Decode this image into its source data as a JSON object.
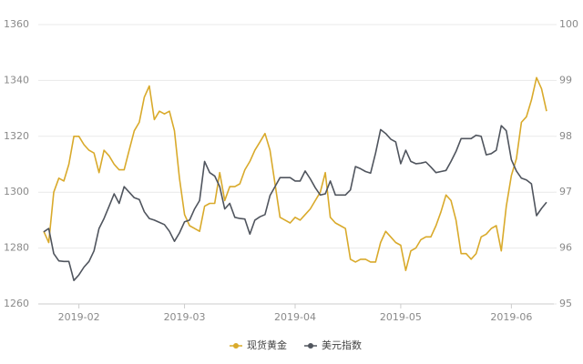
{
  "chart_data": {
    "type": "line",
    "categories": [
      null,
      null,
      null,
      null,
      null,
      null,
      null,
      "2019-02",
      null,
      null,
      null,
      null,
      null,
      null,
      null,
      null,
      null,
      null,
      null,
      null,
      null,
      null,
      null,
      null,
      null,
      null,
      null,
      null,
      "2019-03",
      null,
      null,
      null,
      null,
      null,
      null,
      null,
      null,
      null,
      null,
      null,
      null,
      null,
      null,
      null,
      null,
      null,
      null,
      null,
      null,
      null,
      "2019-04",
      null,
      null,
      null,
      null,
      null,
      null,
      null,
      null,
      null,
      null,
      null,
      null,
      null,
      null,
      null,
      null,
      null,
      null,
      null,
      null,
      "2019-05",
      null,
      null,
      null,
      null,
      null,
      null,
      null,
      null,
      null,
      null,
      null,
      null,
      null,
      null,
      null,
      null,
      null,
      null,
      null,
      null,
      null,
      "2019-06",
      null,
      null,
      null,
      null,
      null,
      null,
      null
    ],
    "series": [
      {
        "name": "现货黄金",
        "color": "#d9aa2b",
        "axis": "y",
        "values": [
          1286,
          1282,
          1300,
          1305,
          1304,
          1310,
          1320,
          1320,
          1317,
          1315,
          1314,
          1307,
          1315,
          1313,
          1310,
          1308,
          1308,
          1315,
          1322,
          1325,
          1334,
          1338,
          1326,
          1329,
          1328,
          1329,
          1322,
          1305,
          1292,
          1288,
          1287,
          1286,
          1295,
          1296,
          1296,
          1307,
          1297,
          1302,
          1302,
          1303,
          1308,
          1311,
          1315,
          1318,
          1321,
          1315,
          1303,
          1291,
          1290,
          1289,
          1291,
          1290,
          1292,
          1294,
          1297,
          1300,
          1307,
          1291,
          1289,
          1288,
          1287,
          1276,
          1275,
          1276,
          1276,
          1275,
          1275,
          1282,
          1286,
          1284,
          1282,
          1281,
          1272,
          1279,
          1280,
          1283,
          1284,
          1284,
          1288,
          1293,
          1299,
          1297,
          1290,
          1278,
          1278,
          1276,
          1278,
          1284,
          1285,
          1287,
          1288,
          1279,
          1295,
          1306,
          1312,
          1325,
          1327,
          1333,
          1341,
          1337,
          1329
        ]
      },
      {
        "name": "美元指数",
        "color": "#50555e",
        "axis": "y2",
        "values": [
          96.29,
          96.35,
          95.9,
          95.77,
          95.76,
          95.76,
          95.42,
          95.52,
          95.66,
          95.76,
          95.95,
          96.35,
          96.53,
          96.75,
          96.97,
          96.8,
          97.1,
          97.0,
          96.9,
          96.87,
          96.65,
          96.53,
          96.5,
          96.46,
          96.42,
          96.3,
          96.12,
          96.27,
          96.47,
          96.5,
          96.7,
          96.85,
          97.55,
          97.35,
          97.29,
          97.1,
          96.7,
          96.8,
          96.55,
          96.53,
          96.52,
          96.25,
          96.5,
          96.56,
          96.6,
          96.94,
          97.1,
          97.26,
          97.26,
          97.26,
          97.2,
          97.2,
          97.38,
          97.24,
          97.08,
          96.95,
          96.97,
          97.2,
          96.95,
          96.95,
          96.95,
          97.04,
          97.46,
          97.42,
          97.37,
          97.34,
          97.7,
          98.12,
          98.05,
          97.95,
          97.9,
          97.51,
          97.75,
          97.55,
          97.51,
          97.52,
          97.54,
          97.45,
          97.35,
          97.37,
          97.39,
          97.55,
          97.73,
          97.96,
          97.96,
          97.96,
          98.02,
          98.0,
          97.67,
          97.69,
          97.75,
          98.19,
          98.1,
          97.58,
          97.38,
          97.25,
          97.22,
          97.15,
          96.58,
          96.71,
          96.82
        ]
      }
    ],
    "ylim": [
      1260,
      1360
    ],
    "yticks": [
      1260,
      1280,
      1300,
      1320,
      1340,
      1360
    ],
    "y2lim": [
      95,
      100
    ],
    "y2ticks": [
      95,
      96,
      97,
      98,
      99,
      100
    ],
    "grid": true,
    "legend": "bottom"
  }
}
